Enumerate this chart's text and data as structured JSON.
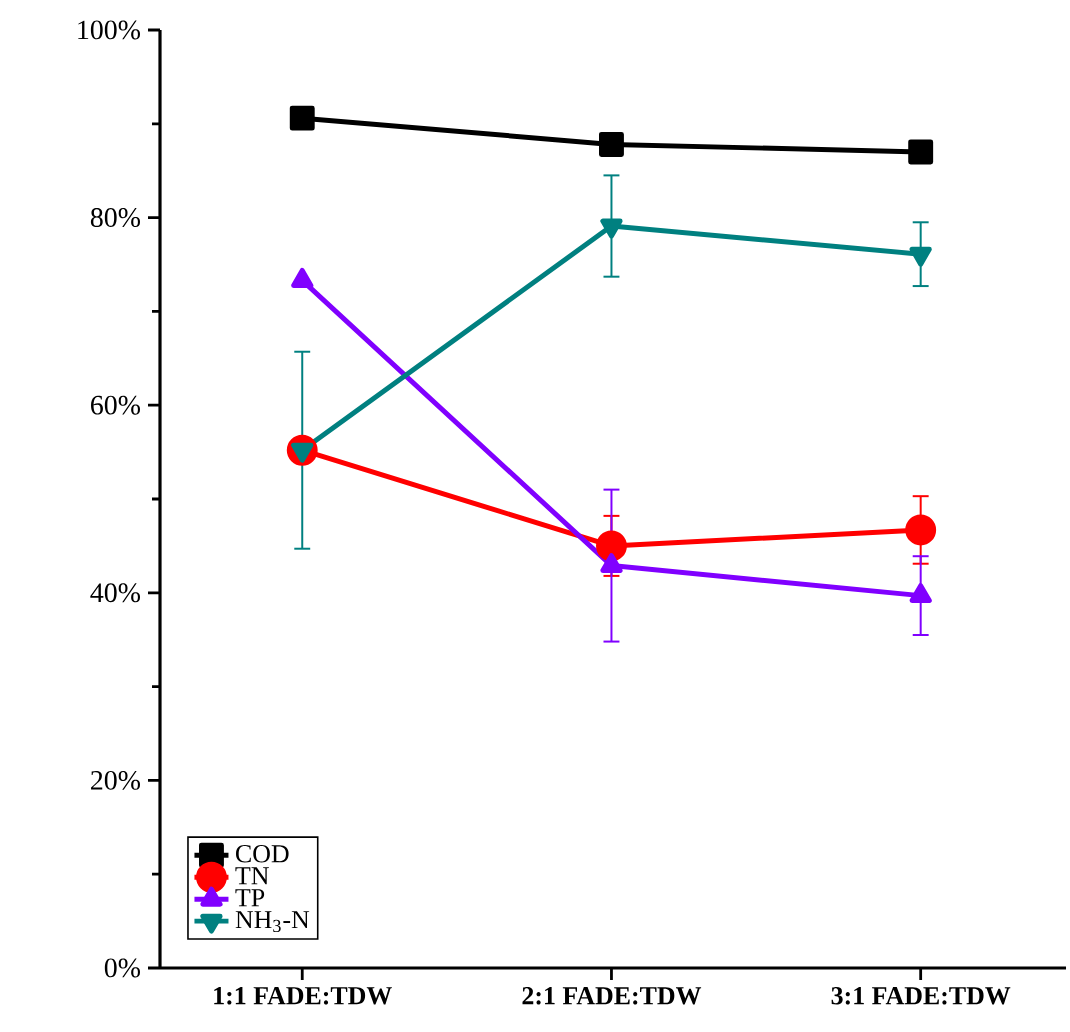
{
  "chart_data": {
    "type": "line",
    "categories": [
      "1:1 FADE:TDW",
      "2:1 FADE:TDW",
      "3:1 FADE:TDW"
    ],
    "series": [
      {
        "name": "COD",
        "color": "#000000",
        "marker": "square",
        "values": [
          90.6,
          87.8,
          87.0
        ]
      },
      {
        "name": "TN",
        "color": "#ff0000",
        "marker": "circle",
        "values": [
          55.2,
          45.0,
          46.7
        ],
        "errors": [
          null,
          3.2,
          3.6
        ]
      },
      {
        "name": "TP",
        "color": "#8000ff",
        "marker": "triangle",
        "values": [
          73.3,
          42.9,
          39.7
        ],
        "errors": [
          null,
          8.1,
          4.2
        ]
      },
      {
        "name": "NH$_{3}$-N",
        "color": "#008080",
        "marker": "triangle_down",
        "values": [
          55.2,
          79.1,
          76.1
        ],
        "errors": [
          10.5,
          5.4,
          3.4
        ]
      }
    ],
    "ylim": [
      0,
      100
    ],
    "yticks": [
      {
        "value": 0,
        "label": "0%"
      },
      {
        "value": 20,
        "label": "20%"
      },
      {
        "value": 40,
        "label": "40%"
      },
      {
        "value": 60,
        "label": "60%"
      },
      {
        "value": 80,
        "label": "80%"
      },
      {
        "value": 100,
        "label": "100%"
      }
    ],
    "legend": "bottom left",
    "grid": false
  }
}
